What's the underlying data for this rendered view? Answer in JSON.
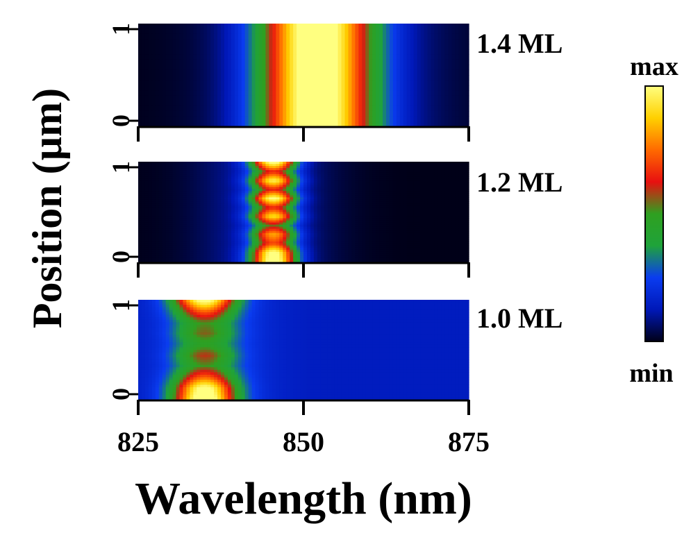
{
  "chart_data": {
    "type": "heatmap",
    "xlabel": "Wavelength (nm)",
    "ylabel": "Position (µm)",
    "xlim": [
      825,
      875
    ],
    "ylim": [
      0,
      1
    ],
    "x_ticks": [
      "825",
      "850",
      "875"
    ],
    "y_ticks": [
      "0",
      "1"
    ],
    "colorbar": {
      "max_label": "max",
      "min_label": "min",
      "colors": [
        "#000018",
        "#0018b8",
        "#0a3cf0",
        "#1fa33a",
        "#2fa020",
        "#e81010",
        "#ff6a00",
        "#ffd000",
        "#ffff80"
      ]
    },
    "panels": [
      {
        "label": "1.4 ML",
        "background": 0.0,
        "bands": [
          {
            "center": 852,
            "width": 8.5,
            "amp": 0.97
          },
          {
            "center": 854,
            "width": 16,
            "amp": 0.14
          }
        ],
        "y_profile": [
          1.0,
          1.0,
          1.0,
          1.0,
          1.0
        ]
      },
      {
        "label": "1.2 ML",
        "background": 0.0,
        "bands": [
          {
            "center": 845.5,
            "width": 3.4,
            "amp": 0.95
          },
          {
            "center": 844,
            "width": 10,
            "amp": 0.12
          }
        ],
        "y_profile": [
          0.95,
          0.55,
          0.9,
          0.55,
          0.95,
          0.55,
          0.85,
          0.45,
          0.75,
          0.6,
          0.95,
          1.0
        ]
      },
      {
        "label": "1.0 ML",
        "background": 0.14,
        "bands": [
          {
            "center": 835,
            "width": 4.5,
            "amp": 0.85
          },
          {
            "center": 836,
            "width": 8,
            "amp": 0.12
          }
        ],
        "y_profile": [
          0.9,
          0.55,
          0.3,
          0.35,
          0.25,
          0.4,
          0.3,
          0.55,
          0.9,
          1.0
        ]
      }
    ]
  }
}
